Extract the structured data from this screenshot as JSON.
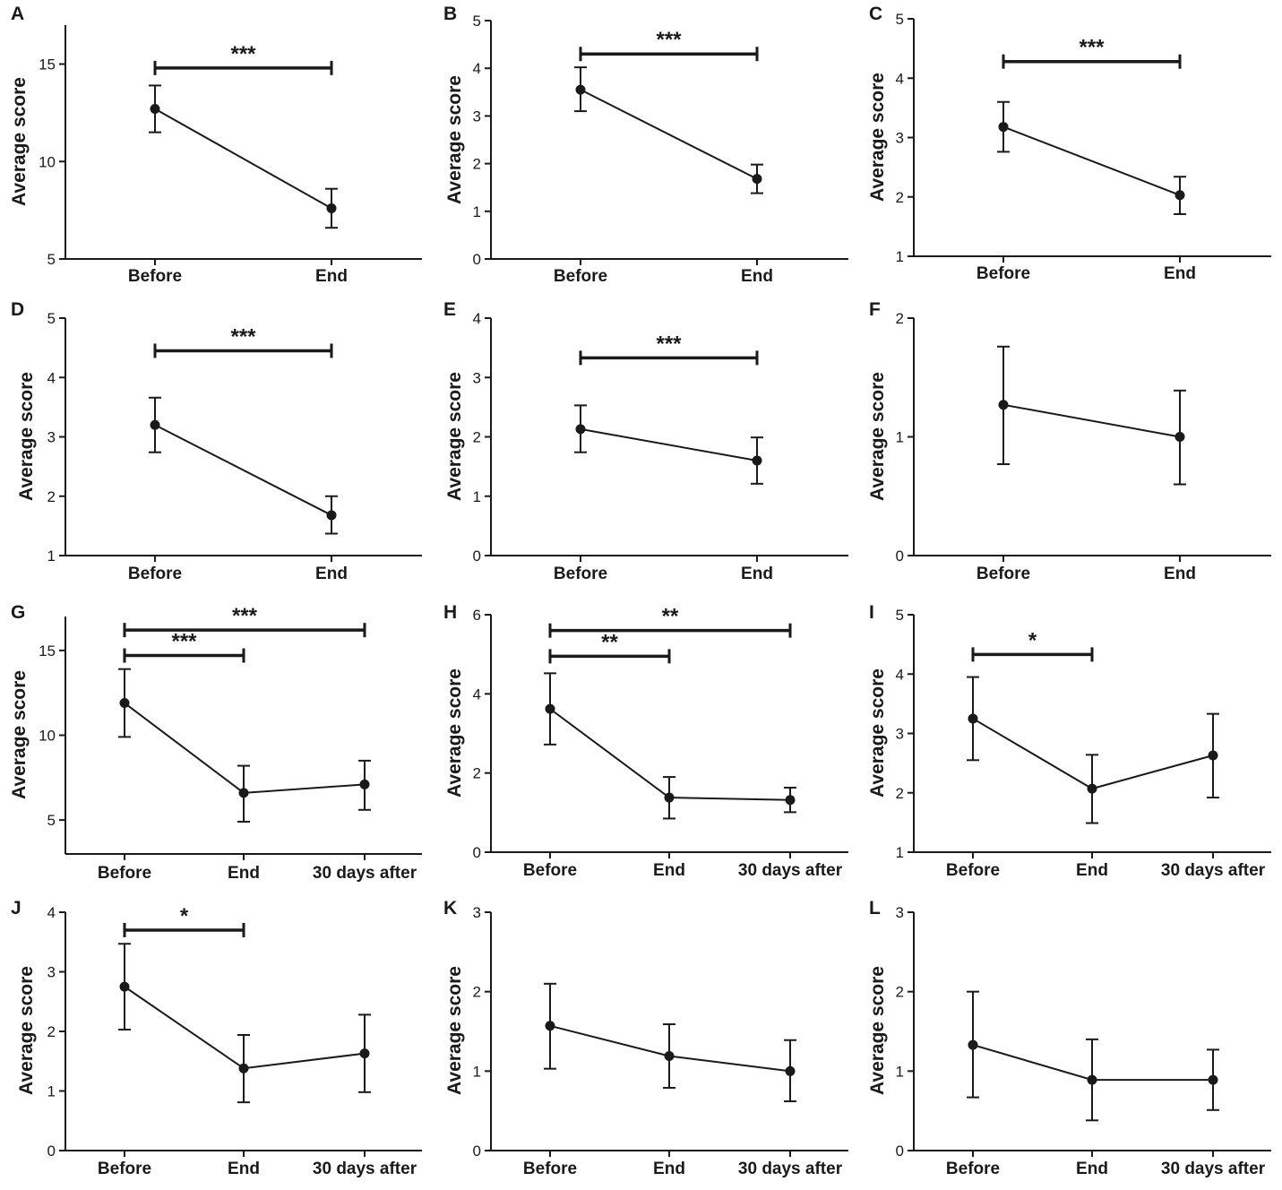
{
  "chart_data": [
    {
      "panel": "A",
      "type": "line",
      "categories": [
        "Before",
        "End"
      ],
      "values": [
        12.7,
        7.6
      ],
      "err_low": [
        11.5,
        6.6
      ],
      "err_high": [
        13.9,
        8.6
      ],
      "ylim": [
        5,
        17
      ],
      "yticks": [
        "5",
        "10",
        "15"
      ],
      "ylabel": "Average score",
      "significance": [
        {
          "from": 0,
          "to": 1,
          "label": "***",
          "y": 14.8
        }
      ]
    },
    {
      "panel": "B",
      "type": "line",
      "categories": [
        "Before",
        "End"
      ],
      "values": [
        3.55,
        1.68
      ],
      "err_low": [
        3.1,
        1.38
      ],
      "err_high": [
        4.02,
        1.98
      ],
      "ylim": [
        0,
        5
      ],
      "yticks": [
        "0",
        "1",
        "2",
        "3",
        "4",
        "5"
      ],
      "ylabel": "Average score",
      "significance": [
        {
          "from": 0,
          "to": 1,
          "label": "***",
          "y": 4.3
        }
      ]
    },
    {
      "panel": "C",
      "type": "line",
      "categories": [
        "Before",
        "End"
      ],
      "values": [
        3.18,
        2.03
      ],
      "err_low": [
        2.76,
        1.71
      ],
      "err_high": [
        3.6,
        2.34
      ],
      "ylim": [
        1,
        5
      ],
      "yticks": [
        "1",
        "2",
        "3",
        "4",
        "5"
      ],
      "ylabel": "Average score",
      "significance": [
        {
          "from": 0,
          "to": 1,
          "label": "***",
          "y": 4.28
        }
      ]
    },
    {
      "panel": "D",
      "type": "line",
      "categories": [
        "Before",
        "End"
      ],
      "values": [
        3.2,
        1.68
      ],
      "err_low": [
        2.74,
        1.37
      ],
      "err_high": [
        3.66,
        2.0
      ],
      "ylim": [
        1,
        5
      ],
      "yticks": [
        "1",
        "2",
        "3",
        "4",
        "5"
      ],
      "ylabel": "Average score",
      "significance": [
        {
          "from": 0,
          "to": 1,
          "label": "***",
          "y": 4.45
        }
      ]
    },
    {
      "panel": "E",
      "type": "line",
      "categories": [
        "Before",
        "End"
      ],
      "values": [
        2.13,
        1.6
      ],
      "err_low": [
        1.74,
        1.21
      ],
      "err_high": [
        2.53,
        1.99
      ],
      "ylim": [
        0,
        4
      ],
      "yticks": [
        "0",
        "1",
        "2",
        "3",
        "4"
      ],
      "ylabel": "Average score",
      "significance": [
        {
          "from": 0,
          "to": 1,
          "label": "***",
          "y": 3.33
        }
      ]
    },
    {
      "panel": "F",
      "type": "line",
      "categories": [
        "Before",
        "End"
      ],
      "values": [
        1.27,
        1.0
      ],
      "err_low": [
        0.77,
        0.6
      ],
      "err_high": [
        1.76,
        1.39
      ],
      "ylim": [
        0,
        2
      ],
      "yticks": [
        "0",
        "1",
        "2"
      ],
      "ylabel": "Average score",
      "significance": []
    },
    {
      "panel": "G",
      "type": "line",
      "categories": [
        "Before",
        "End",
        "30 days after"
      ],
      "values": [
        11.9,
        6.6,
        7.1
      ],
      "err_low": [
        9.9,
        4.9,
        5.6
      ],
      "err_high": [
        13.9,
        8.2,
        8.5
      ],
      "ylim": [
        3,
        17
      ],
      "yticks": [
        "5",
        "10",
        "15"
      ],
      "ylabel": "Average score",
      "significance": [
        {
          "from": 0,
          "to": 2,
          "label": "***",
          "y": 16.2
        },
        {
          "from": 0,
          "to": 1,
          "label": "***",
          "y": 14.7
        }
      ]
    },
    {
      "panel": "H",
      "type": "line",
      "categories": [
        "Before",
        "End",
        "30 days after"
      ],
      "values": [
        3.62,
        1.38,
        1.32
      ],
      "err_low": [
        2.72,
        0.85,
        1.01
      ],
      "err_high": [
        4.52,
        1.9,
        1.63
      ],
      "ylim": [
        0,
        6
      ],
      "yticks": [
        "0",
        "2",
        "4",
        "6"
      ],
      "ylabel": "Average score",
      "significance": [
        {
          "from": 0,
          "to": 2,
          "label": "**",
          "y": 5.6
        },
        {
          "from": 0,
          "to": 1,
          "label": "**",
          "y": 4.95
        }
      ]
    },
    {
      "panel": "I",
      "type": "line",
      "categories": [
        "Before",
        "End",
        "30 days after"
      ],
      "values": [
        3.25,
        2.07,
        2.63
      ],
      "err_low": [
        2.55,
        1.49,
        1.92
      ],
      "err_high": [
        3.95,
        2.64,
        3.33
      ],
      "ylim": [
        1,
        5
      ],
      "yticks": [
        "1",
        "2",
        "3",
        "4",
        "5"
      ],
      "ylabel": "Average score",
      "significance": [
        {
          "from": 0,
          "to": 1,
          "label": "*",
          "y": 4.33
        }
      ]
    },
    {
      "panel": "J",
      "type": "line",
      "categories": [
        "Before",
        "End",
        "30 days after"
      ],
      "values": [
        2.75,
        1.38,
        1.63
      ],
      "err_low": [
        2.03,
        0.81,
        0.98
      ],
      "err_high": [
        3.47,
        1.94,
        2.28
      ],
      "ylim": [
        0,
        4
      ],
      "yticks": [
        "0",
        "1",
        "2",
        "3",
        "4"
      ],
      "ylabel": "Average score",
      "significance": [
        {
          "from": 0,
          "to": 1,
          "label": "*",
          "y": 3.7
        }
      ]
    },
    {
      "panel": "K",
      "type": "line",
      "categories": [
        "Before",
        "End",
        "30 days after"
      ],
      "values": [
        1.57,
        1.19,
        1.0
      ],
      "err_low": [
        1.03,
        0.79,
        0.62
      ],
      "err_high": [
        2.1,
        1.59,
        1.39
      ],
      "ylim": [
        0,
        3
      ],
      "yticks": [
        "0",
        "1",
        "2",
        "3"
      ],
      "ylabel": "Average score",
      "significance": []
    },
    {
      "panel": "L",
      "type": "line",
      "categories": [
        "Before",
        "End",
        "30 days after"
      ],
      "values": [
        1.33,
        0.89,
        0.89
      ],
      "err_low": [
        0.67,
        0.38,
        0.51
      ],
      "err_high": [
        2.0,
        1.4,
        1.27
      ],
      "ylim": [
        0,
        3
      ],
      "yticks": [
        "0",
        "1",
        "2",
        "3"
      ],
      "ylabel": "Average score",
      "significance": []
    }
  ]
}
